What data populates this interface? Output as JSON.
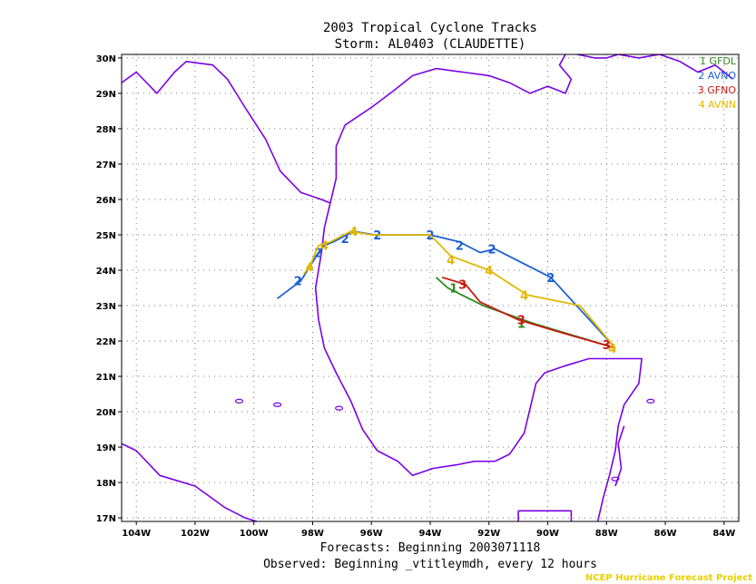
{
  "header": {
    "title": "2003 Tropical Cyclone Tracks",
    "subtitle": "Storm: AL0403 (CLAUDETTE)"
  },
  "footer": {
    "line1": "Forecasts: Beginning 2003071118",
    "line2": "Observed: Beginning _vtitleymdh, every 12 hours",
    "credit": "NCEP Hurricane Forecast Project"
  },
  "colors": {
    "coast": "#7a00e6",
    "grid": "#777777",
    "GFDL": "#2e8b1e",
    "AVNO": "#1a5fd6",
    "GFNO": "#c81a10",
    "AVNN": "#e0b800"
  },
  "chart_data": {
    "type": "line",
    "title": "2003 Tropical Cyclone Tracks",
    "subtitle": "Storm: AL0403 (CLAUDETTE)",
    "xlabel": "",
    "ylabel": "",
    "xlim": [
      -104.5,
      -83.5
    ],
    "ylim": [
      16.9,
      30.1
    ],
    "x_ticks": [
      -104,
      -102,
      -100,
      -98,
      -96,
      -94,
      -92,
      -90,
      -88,
      -86,
      -84
    ],
    "x_tick_labels": [
      "104W",
      "102W",
      "100W",
      "98W",
      "96W",
      "94W",
      "92W",
      "90W",
      "88W",
      "86W",
      "84W"
    ],
    "y_ticks": [
      17,
      18,
      19,
      20,
      21,
      22,
      23,
      24,
      25,
      26,
      27,
      28,
      29,
      30
    ],
    "y_tick_labels": [
      "17N",
      "18N",
      "19N",
      "20N",
      "21N",
      "22N",
      "23N",
      "24N",
      "25N",
      "26N",
      "27N",
      "28N",
      "29N",
      "30N"
    ],
    "grid": true,
    "legend_position": "top-right",
    "series": [
      {
        "id": "GFDL",
        "name": "GFDL",
        "legend_label": "1 GFDL",
        "marker": "1",
        "points": [
          [
            -87.7,
            21.8
          ],
          [
            -90.5,
            22.5
          ],
          [
            -92.2,
            23.0
          ],
          [
            -93.4,
            23.5
          ],
          [
            -93.8,
            23.8
          ]
        ],
        "marker_points": [
          [
            -90.9,
            22.5
          ],
          [
            -93.2,
            23.5
          ]
        ]
      },
      {
        "id": "AVNO",
        "name": "AVNO",
        "legend_label": "2 AVNO",
        "marker": "2",
        "points": [
          [
            -87.7,
            21.8
          ],
          [
            -89.9,
            23.8
          ],
          [
            -91.8,
            24.6
          ],
          [
            -92.3,
            24.5
          ],
          [
            -93.0,
            24.8
          ],
          [
            -94.0,
            25.0
          ],
          [
            -95.9,
            25.0
          ],
          [
            -96.6,
            25.1
          ],
          [
            -97.3,
            24.8
          ],
          [
            -97.6,
            24.7
          ],
          [
            -97.8,
            24.5
          ],
          [
            -98.4,
            23.7
          ],
          [
            -99.2,
            23.2
          ]
        ],
        "marker_points": [
          [
            -89.9,
            23.8
          ],
          [
            -91.9,
            24.6
          ],
          [
            -93.0,
            24.7
          ],
          [
            -94.0,
            25.0
          ],
          [
            -95.8,
            25.0
          ],
          [
            -96.9,
            24.9
          ],
          [
            -97.8,
            24.5
          ],
          [
            -98.5,
            23.7
          ]
        ]
      },
      {
        "id": "GFNO",
        "name": "GFNO",
        "legend_label": "3 GFNO",
        "marker": "3",
        "points": [
          [
            -87.7,
            21.8
          ],
          [
            -89.8,
            22.3
          ],
          [
            -91.0,
            22.6
          ],
          [
            -92.3,
            23.1
          ],
          [
            -92.8,
            23.6
          ],
          [
            -93.6,
            23.8
          ]
        ],
        "marker_points": [
          [
            -88.0,
            21.9
          ],
          [
            -90.9,
            22.6
          ],
          [
            -92.9,
            23.6
          ]
        ]
      },
      {
        "id": "AVNN",
        "name": "AVNN",
        "legend_label": "4 AVNN",
        "marker": "4",
        "points": [
          [
            -87.7,
            21.8
          ],
          [
            -88.9,
            23.0
          ],
          [
            -90.7,
            23.3
          ],
          [
            -92.0,
            24.0
          ],
          [
            -93.3,
            24.4
          ],
          [
            -94.0,
            25.0
          ],
          [
            -96.0,
            25.0
          ],
          [
            -96.7,
            25.1
          ],
          [
            -97.4,
            24.8
          ],
          [
            -97.8,
            24.7
          ],
          [
            -97.9,
            24.5
          ],
          [
            -98.1,
            24.1
          ],
          [
            -98.3,
            23.9
          ]
        ],
        "marker_points": [
          [
            -87.8,
            21.8
          ],
          [
            -90.8,
            23.3
          ],
          [
            -92.0,
            24.0
          ],
          [
            -93.3,
            24.3
          ],
          [
            -96.6,
            25.1
          ],
          [
            -97.6,
            24.7
          ],
          [
            -98.1,
            24.1
          ]
        ]
      }
    ]
  }
}
